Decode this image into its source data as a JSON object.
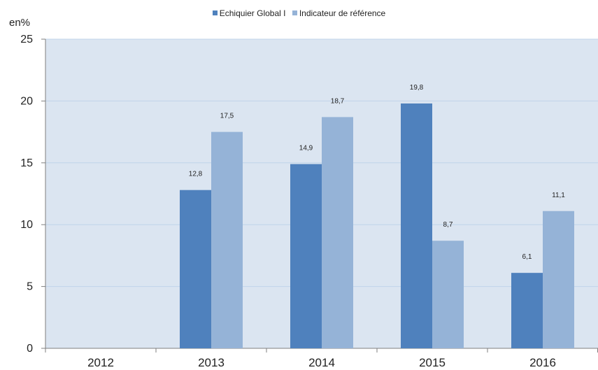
{
  "chart_data": {
    "type": "bar",
    "categories": [
      "2012",
      "2013",
      "2014",
      "2015",
      "2016"
    ],
    "series": [
      {
        "name": "Echiquier Global I",
        "values": [
          null,
          12.8,
          14.9,
          19.8,
          6.1
        ],
        "labels": [
          "",
          "12,8",
          "14,9",
          "19,8",
          "6,1"
        ],
        "color": "#4f81bd"
      },
      {
        "name": "Indicateur de référence",
        "values": [
          null,
          17.5,
          18.7,
          8.7,
          11.1
        ],
        "labels": [
          "",
          "17,5",
          "18,7",
          "8,7",
          "11,1"
        ],
        "color": "#95b3d7"
      }
    ],
    "ylabel": "en%",
    "ylim": [
      0,
      25
    ],
    "yticks": [
      0,
      5,
      10,
      15,
      20,
      25
    ],
    "grid": true,
    "legend": "top-center",
    "plot_background": "#dbe5f1",
    "gridline_color": "#c0d4ea"
  }
}
